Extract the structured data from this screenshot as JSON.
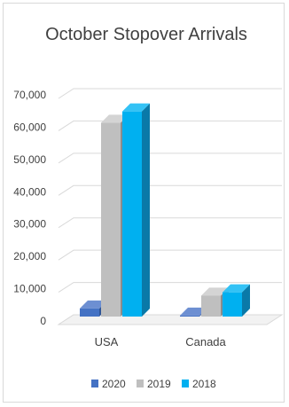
{
  "chart_data": {
    "type": "bar",
    "title": "October Stopover Arrivals",
    "categories": [
      "USA",
      "Canada"
    ],
    "series": [
      {
        "name": "2020",
        "values": [
          2500,
          300
        ]
      },
      {
        "name": "2019",
        "values": [
          60000,
          6500
        ]
      },
      {
        "name": "2018",
        "values": [
          63500,
          7500
        ]
      }
    ],
    "yticks": [
      "0",
      "10,000",
      "20,000",
      "30,000",
      "40,000",
      "50,000",
      "60,000",
      "70,000"
    ],
    "ylim": [
      0,
      70000
    ],
    "grid": true,
    "legend_position": "bottom",
    "colors": {
      "2020": {
        "front": "#4472c4",
        "top": "#6d8fd2",
        "side": "#2e5597"
      },
      "2019": {
        "front": "#bfbfbf",
        "top": "#d4d4d4",
        "side": "#8c8c8c"
      },
      "2018": {
        "front": "#00b0f0",
        "top": "#33c2f5",
        "side": "#0a79a8"
      }
    }
  }
}
